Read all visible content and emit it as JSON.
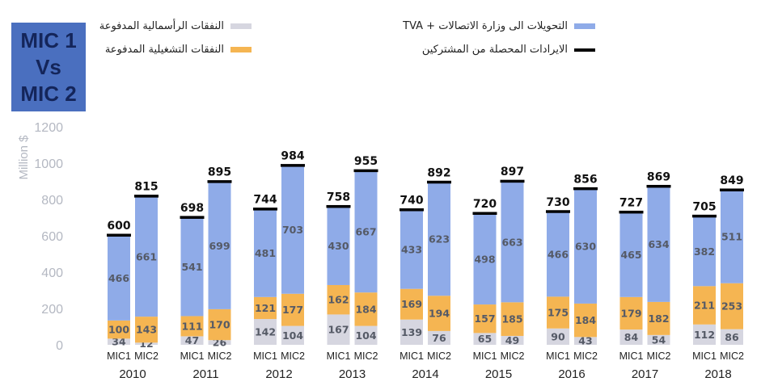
{
  "title_lines": [
    "MIC 1",
    "Vs",
    "MIC 2"
  ],
  "legend": {
    "capex": "النفقات الرأسمالية المدفوعة",
    "opex": "النفقات التشغيلية المدفوعة",
    "transfers": "التحويلات الى وزارة الاتصالات + TVA",
    "revenue": "الايرادات المحصلة من المشتركين"
  },
  "colors": {
    "capex": "#d6d6e0",
    "opex": "#f5b552",
    "transfers": "#8fabe8",
    "revenue_line": "#000000",
    "title_box": "#4a6fbf"
  },
  "chart_data": {
    "type": "bar",
    "stacked": true,
    "ylabel": "Million $",
    "ylim": [
      0,
      1200
    ],
    "yticks": [
      "0",
      "200",
      "400",
      "600",
      "800",
      "1000",
      "1200"
    ],
    "grid": false,
    "years": [
      "2010",
      "2011",
      "2012",
      "2013",
      "2014",
      "2015",
      "2016",
      "2017",
      "2018"
    ],
    "bar_labels": [
      "MIC1",
      "MIC2"
    ],
    "series_keys": [
      "capex",
      "opex",
      "transfers"
    ],
    "bars": [
      {
        "year": "2010",
        "operator": "MIC1",
        "capex": 34,
        "opex": 100,
        "transfers": 466,
        "total": 600
      },
      {
        "year": "2010",
        "operator": "MIC2",
        "capex": 12,
        "opex": 143,
        "transfers": 661,
        "total": 815
      },
      {
        "year": "2011",
        "operator": "MIC1",
        "capex": 47,
        "opex": 111,
        "transfers": 541,
        "total": 698
      },
      {
        "year": "2011",
        "operator": "MIC2",
        "capex": 26,
        "opex": 170,
        "transfers": 699,
        "total": 895
      },
      {
        "year": "2012",
        "operator": "MIC1",
        "capex": 142,
        "opex": 121,
        "transfers": 481,
        "total": 744
      },
      {
        "year": "2012",
        "operator": "MIC2",
        "capex": 104,
        "opex": 177,
        "transfers": 703,
        "total": 984
      },
      {
        "year": "2013",
        "operator": "MIC1",
        "capex": 167,
        "opex": 162,
        "transfers": 430,
        "total": 758
      },
      {
        "year": "2013",
        "operator": "MIC2",
        "capex": 104,
        "opex": 184,
        "transfers": 667,
        "total": 955
      },
      {
        "year": "2014",
        "operator": "MIC1",
        "capex": 139,
        "opex": 169,
        "transfers": 433,
        "total": 740
      },
      {
        "year": "2014",
        "operator": "MIC2",
        "capex": 76,
        "opex": 194,
        "transfers": 623,
        "total": 892
      },
      {
        "year": "2015",
        "operator": "MIC1",
        "capex": 65,
        "opex": 157,
        "transfers": 498,
        "total": 720
      },
      {
        "year": "2015",
        "operator": "MIC2",
        "capex": 49,
        "opex": 185,
        "transfers": 663,
        "total": 897
      },
      {
        "year": "2016",
        "operator": "MIC1",
        "capex": 90,
        "opex": 175,
        "transfers": 466,
        "total": 730
      },
      {
        "year": "2016",
        "operator": "MIC2",
        "capex": 43,
        "opex": 184,
        "transfers": 630,
        "total": 856
      },
      {
        "year": "2017",
        "operator": "MIC1",
        "capex": 84,
        "opex": 179,
        "transfers": 465,
        "total": 727
      },
      {
        "year": "2017",
        "operator": "MIC2",
        "capex": 54,
        "opex": 182,
        "transfers": 634,
        "total": 869
      },
      {
        "year": "2018",
        "operator": "MIC1",
        "capex": 112,
        "opex": 211,
        "transfers": 382,
        "total": 705
      },
      {
        "year": "2018",
        "operator": "MIC2",
        "capex": 86,
        "opex": 253,
        "transfers": 511,
        "total": 849
      }
    ]
  }
}
